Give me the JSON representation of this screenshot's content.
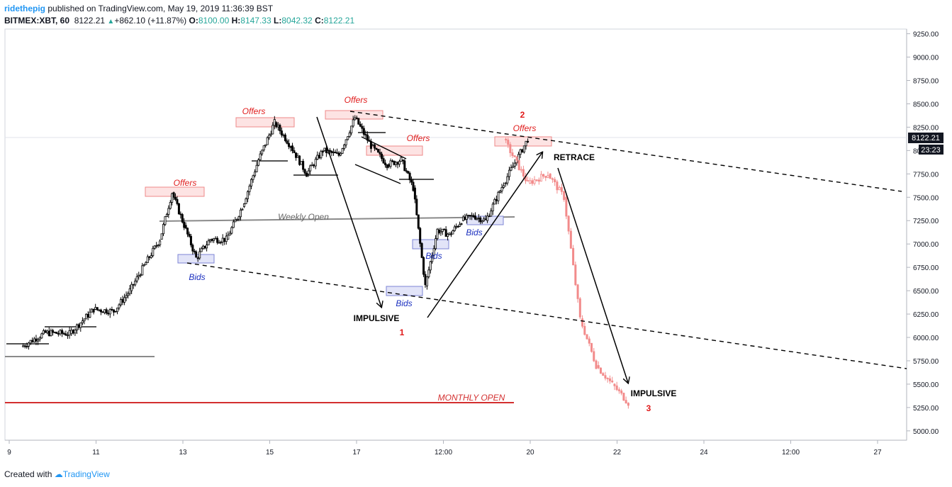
{
  "header": {
    "username": "ridethepig",
    "published_text": "published on TradingView.com, May 19, 2019 11:36:39 BST",
    "symbol": "BITMEX:XBT, 60",
    "last": "8122.21",
    "change": "+862.10 (+11.87%)",
    "open_label": "O:",
    "open": "8100.00",
    "high_label": "H:",
    "high": "8147.33",
    "low_label": "L:",
    "low": "8042.32",
    "close_label": "C:",
    "close": "8122.21"
  },
  "footer": {
    "created_with": "Created with",
    "brand": "TradingView"
  },
  "colors": {
    "up": "#26a69a",
    "annot_red": "#e01919",
    "annot_blue": "#1a2fbf",
    "offer_fill": "#fde3e3",
    "bid_fill": "#e2e4f8",
    "projection": "#f28b8b",
    "monthly_open": "#d32f2f"
  },
  "chart_data": {
    "type": "candlestick",
    "symbol": "BITMEX:XBT, 60",
    "ylim": [
      4900,
      9300
    ],
    "y_ticks": [
      5000,
      5250,
      5500,
      5750,
      6000,
      6250,
      6500,
      6750,
      7000,
      7250,
      7500,
      7750,
      8000,
      8250,
      8500,
      8750,
      9000,
      9250
    ],
    "y_tick_labels": [
      "5000.00",
      "5250.00",
      "5500.00",
      "5750.00",
      "6000.00",
      "6250.00",
      "6500.00",
      "6750.00",
      "7000.00",
      "7250.00",
      "7500.00",
      "7750.00",
      "8000.00",
      "8250.00",
      "8500.00",
      "8750.00",
      "9000.00",
      "9250.00"
    ],
    "x_tick_labels": [
      "9",
      "11",
      "13",
      "15",
      "17",
      "12:00",
      "20",
      "22",
      "24",
      "12:00",
      "27"
    ],
    "last_price_label": "8122.21",
    "countdown_label": "23:23",
    "price_path": [
      [
        "May 9",
        5900
      ],
      [
        "May 9",
        6050
      ],
      [
        "May 10",
        6040
      ],
      [
        "May 10",
        6300
      ],
      [
        "May 11",
        6280
      ],
      [
        "May 11",
        6500
      ],
      [
        "May 11",
        6800
      ],
      [
        "May 12",
        7050
      ],
      [
        "May 12",
        7550
      ],
      [
        "May 12",
        7200
      ],
      [
        "May 12",
        6850
      ],
      [
        "May 13",
        7050
      ],
      [
        "May 13",
        7050
      ],
      [
        "May 13",
        7400
      ],
      [
        "May 14",
        7900
      ],
      [
        "May 14",
        8300
      ],
      [
        "May 14",
        8050
      ],
      [
        "May 15",
        7750
      ],
      [
        "May 15",
        8000
      ],
      [
        "May 15",
        7950
      ],
      [
        "May 16",
        8350
      ],
      [
        "May 16",
        8050
      ],
      [
        "May 16",
        7850
      ],
      [
        "May 17",
        7900
      ],
      [
        "May 17",
        7600
      ],
      [
        "May 17",
        6550
      ],
      [
        "May 17",
        7150
      ],
      [
        "May 18",
        7100
      ],
      [
        "May 18",
        7250
      ],
      [
        "May 18",
        7300
      ],
      [
        "May 18",
        7250
      ],
      [
        "May 19",
        7650
      ],
      [
        "May 19",
        8122
      ]
    ],
    "projection_path": [
      [
        "May 19",
        8122
      ],
      [
        "May 19",
        7650
      ],
      [
        "May 20",
        7750
      ],
      [
        "May 20",
        7500
      ],
      [
        "May 20",
        6200
      ],
      [
        "May 21",
        5700
      ],
      [
        "May 21",
        5500
      ],
      [
        "May 21",
        5300
      ]
    ],
    "annotations": {
      "offers": [
        "Offers",
        "Offers",
        "Offers",
        "Offers",
        "Offers"
      ],
      "bids": [
        "Bids",
        "Bids",
        "Bids",
        "Bids"
      ],
      "weekly_open": "Weekly Open",
      "weekly_open_price": 7225,
      "monthly_open": "MONTHLY OPEN",
      "monthly_open_price": 5270,
      "impulsive_1": "IMPULSIVE",
      "num_1": "1",
      "retrace": "RETRACE",
      "num_2": "2",
      "impulsive_3": "IMPULSIVE",
      "num_3": "3"
    }
  }
}
